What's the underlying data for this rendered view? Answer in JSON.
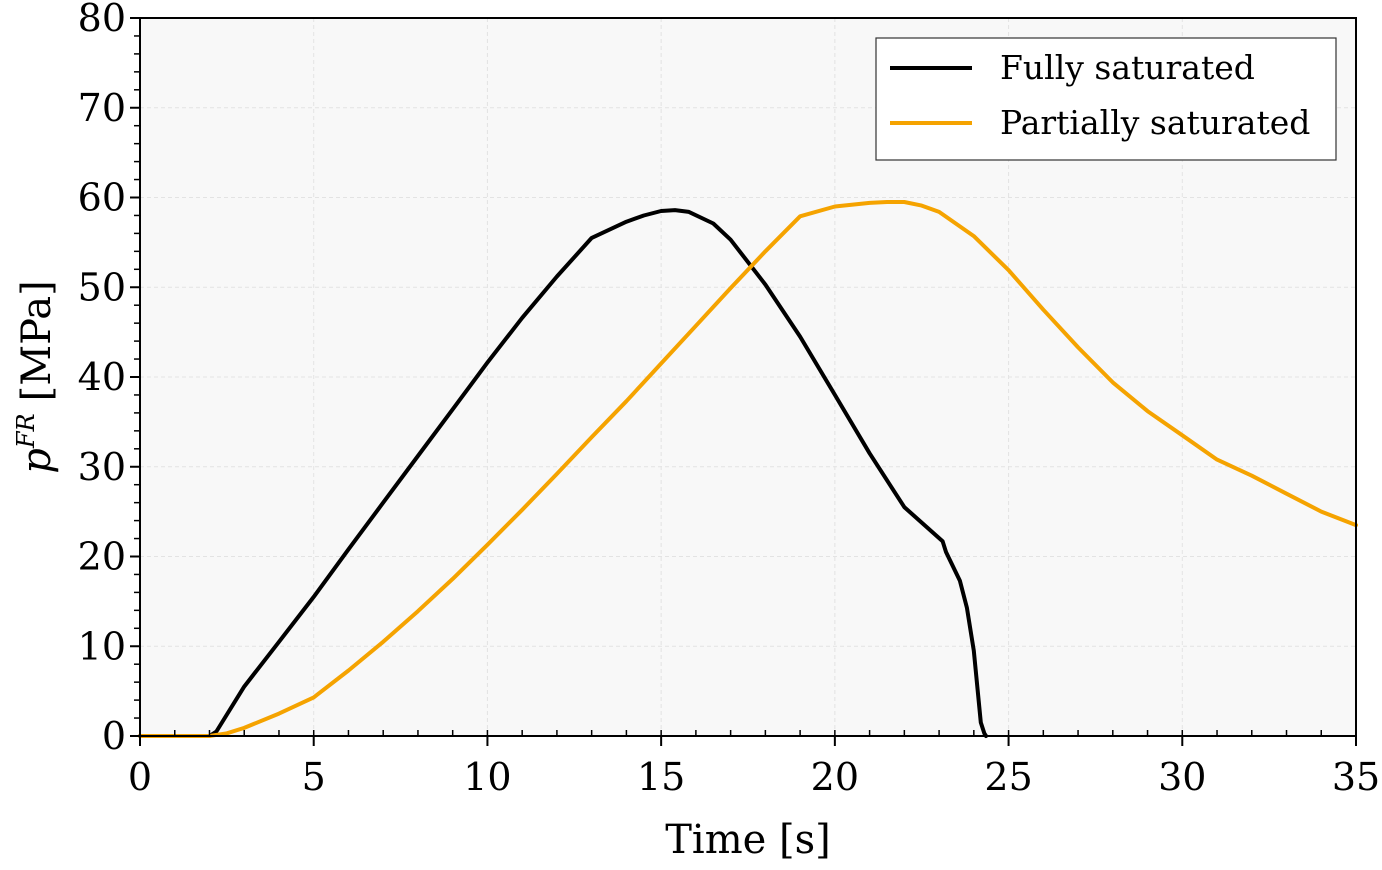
{
  "chart_data": {
    "type": "line",
    "title": "",
    "xlabel": "Time [s]",
    "ylabel_main": "p",
    "ylabel_superscript": "FR",
    "ylabel_unit": "[MPa]",
    "xlim": [
      0,
      35
    ],
    "ylim": [
      0,
      80
    ],
    "xticks": [
      0,
      5,
      10,
      15,
      20,
      25,
      30,
      35
    ],
    "yticks": [
      0,
      10,
      20,
      30,
      40,
      50,
      60,
      70,
      80
    ],
    "x_minor_step": 1,
    "y_minor_step": 2,
    "grid": true,
    "plot_background": "#f8f8f8",
    "legend_position": "top-right",
    "series": [
      {
        "name": "Fully saturated",
        "color": "#000000",
        "x": [
          0,
          2.0,
          2.2,
          3,
          4,
          5,
          6,
          7,
          8,
          9,
          10,
          11,
          12,
          13,
          14,
          14.5,
          15,
          15.4,
          15.8,
          16.5,
          17,
          18,
          19,
          20,
          21,
          22,
          23.1,
          23.2,
          23.35,
          23.6,
          23.8,
          24.0,
          24.1,
          24.2,
          24.3,
          24.35
        ],
        "y": [
          0,
          0,
          0.5,
          5.5,
          10.5,
          15.5,
          20.8,
          26,
          31.2,
          36.4,
          41.6,
          46.6,
          51.2,
          55.5,
          57.3,
          58.0,
          58.5,
          58.6,
          58.4,
          57.1,
          55.3,
          50.3,
          44.5,
          38,
          31.5,
          25.5,
          21.7,
          20.5,
          19.3,
          17.3,
          14.3,
          9.5,
          5.5,
          1.5,
          0.3,
          0
        ]
      },
      {
        "name": "Partially saturated",
        "color": "#f5a300",
        "x": [
          0,
          2.0,
          2.5,
          3,
          4,
          5,
          5.1,
          6,
          7,
          8,
          9,
          10,
          11,
          12,
          13,
          14,
          15,
          16,
          17,
          18,
          19,
          20,
          21,
          21.5,
          22,
          22.5,
          23,
          24,
          25,
          26,
          27,
          28,
          29,
          30,
          31,
          32,
          33,
          34,
          35
        ],
        "y": [
          0,
          0,
          0.3,
          0.9,
          2.5,
          4.3,
          4.6,
          7.3,
          10.5,
          13.9,
          17.5,
          21.3,
          25.2,
          29.2,
          33.3,
          37.3,
          41.5,
          45.7,
          49.9,
          54.0,
          57.9,
          59.0,
          59.4,
          59.5,
          59.5,
          59.1,
          58.4,
          55.7,
          51.9,
          47.5,
          43.3,
          39.4,
          36.2,
          33.5,
          30.8,
          29.0,
          27.0,
          25.0,
          23.5
        ]
      }
    ]
  }
}
